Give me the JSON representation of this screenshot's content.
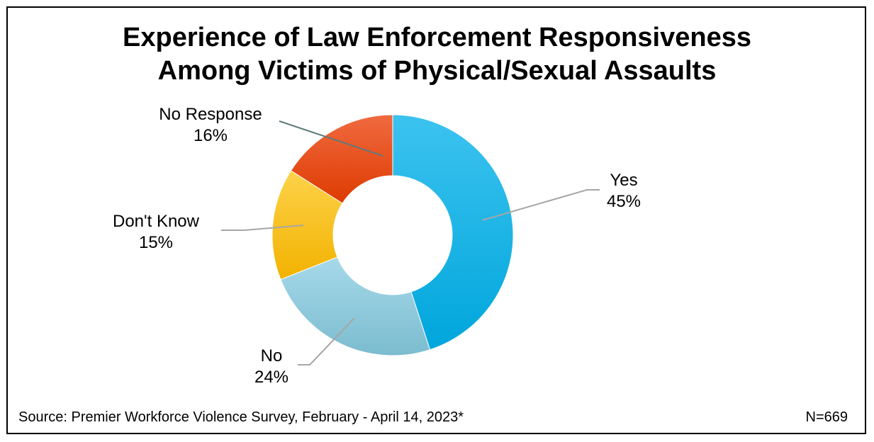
{
  "chart_data": {
    "type": "pie",
    "donut": true,
    "title": [
      "Experience of Law Enforcement Responsiveness",
      "Among Victims of Physical/Sexual Assaults"
    ],
    "slices": [
      {
        "label": "Yes",
        "value": 45,
        "value_label": "45%",
        "color": "#1ab0e6"
      },
      {
        "label": "No",
        "value": 24,
        "value_label": "24%",
        "color": "#8ccbdf"
      },
      {
        "label": "Don't Know",
        "value": 15,
        "value_label": "15%",
        "color": "#fbc21c"
      },
      {
        "label": "No Response",
        "value": 16,
        "value_label": "16%",
        "color": "#e94e1f"
      }
    ],
    "source": "Source: Premier Workforce Violence Survey, February - April 14, 2023*",
    "n": "N=669"
  }
}
